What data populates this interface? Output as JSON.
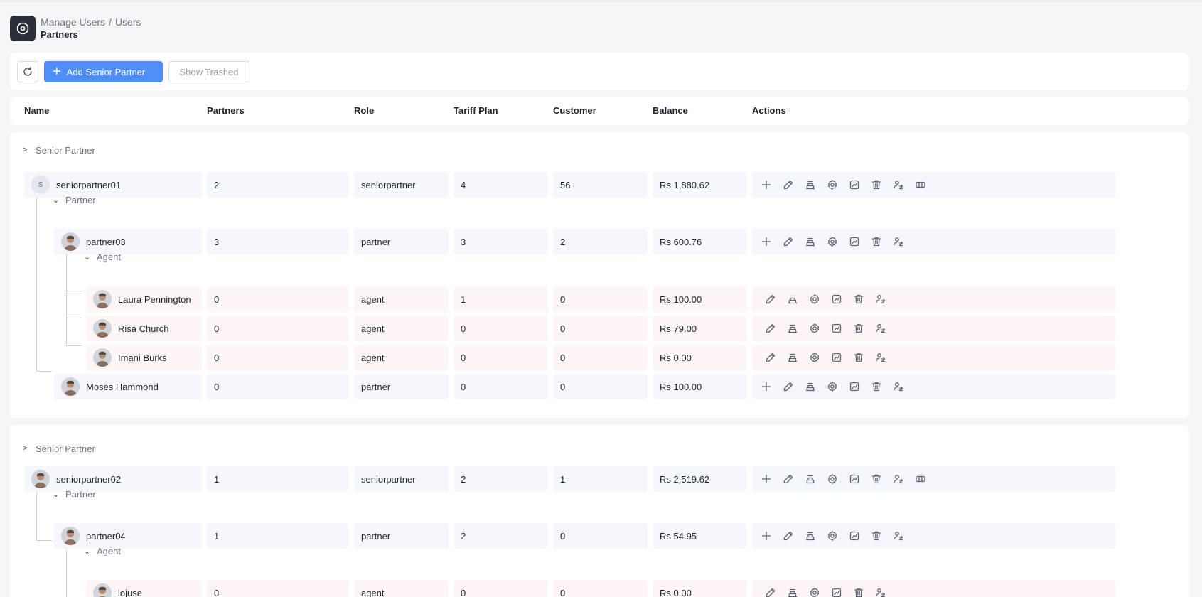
{
  "breadcrumb": {
    "items": [
      "Manage Users",
      "Users"
    ],
    "separator": "/",
    "title": "Partners"
  },
  "toolbar": {
    "add_label": "Add Senior Partner",
    "trash_label": "Show Trashed"
  },
  "columns": [
    "Name",
    "Partners",
    "Role",
    "Tariff Plan",
    "Customer",
    "Balance",
    "Actions"
  ],
  "sections": {
    "senior": "Senior Partner",
    "partner": "Partner",
    "agent": "Agent"
  },
  "colors": {
    "accent": "#4f8ef7",
    "senior_row": "#f4f8fd",
    "partner_row": "#f9f5fd",
    "agent_row": "#fdf6f4"
  },
  "groups": [
    {
      "senior": {
        "name": "seniorpartner01",
        "avatar_letter": "S",
        "partners": "2",
        "role": "seniorpartner",
        "tariff": "4",
        "customer": "56",
        "balance": "Rs 1,880.62"
      },
      "partners": [
        {
          "name": "partner03",
          "partners": "3",
          "role": "partner",
          "tariff": "3",
          "customer": "2",
          "balance": "Rs 600.76",
          "agents": [
            {
              "name": "Laura Pennington",
              "partners": "0",
              "role": "agent",
              "tariff": "1",
              "customer": "0",
              "balance": "Rs 100.00"
            },
            {
              "name": "Risa Church",
              "partners": "0",
              "role": "agent",
              "tariff": "0",
              "customer": "0",
              "balance": "Rs 79.00"
            },
            {
              "name": "Imani Burks",
              "partners": "0",
              "role": "agent",
              "tariff": "0",
              "customer": "0",
              "balance": "Rs 0.00"
            }
          ]
        },
        {
          "name": "Moses Hammond",
          "partners": "0",
          "role": "partner",
          "tariff": "0",
          "customer": "0",
          "balance": "Rs 100.00",
          "agents": []
        }
      ]
    },
    {
      "senior": {
        "name": "seniorpartner02",
        "partners": "1",
        "role": "seniorpartner",
        "tariff": "2",
        "customer": "1",
        "balance": "Rs 2,519.62"
      },
      "partners": [
        {
          "name": "partner04",
          "partners": "1",
          "role": "partner",
          "tariff": "2",
          "customer": "0",
          "balance": "Rs 54.95",
          "agents": [
            {
              "name": "lojuse",
              "partners": "0",
              "role": "agent",
              "tariff": "0",
              "customer": "0",
              "balance": "Rs 0.00"
            }
          ]
        }
      ]
    }
  ],
  "icons": {
    "senior_actions": [
      "add-icon",
      "edit-icon",
      "transfer-icon",
      "settings-icon",
      "report-icon",
      "trash-icon",
      "user-switch-icon",
      "wallet-icon"
    ],
    "partner_actions": [
      "add-icon",
      "edit-icon",
      "transfer-icon",
      "settings-icon",
      "report-icon",
      "trash-icon",
      "user-switch-icon"
    ],
    "agent_actions": [
      "edit-icon",
      "transfer-icon",
      "settings-icon",
      "report-icon",
      "trash-icon",
      "user-switch-icon"
    ]
  }
}
